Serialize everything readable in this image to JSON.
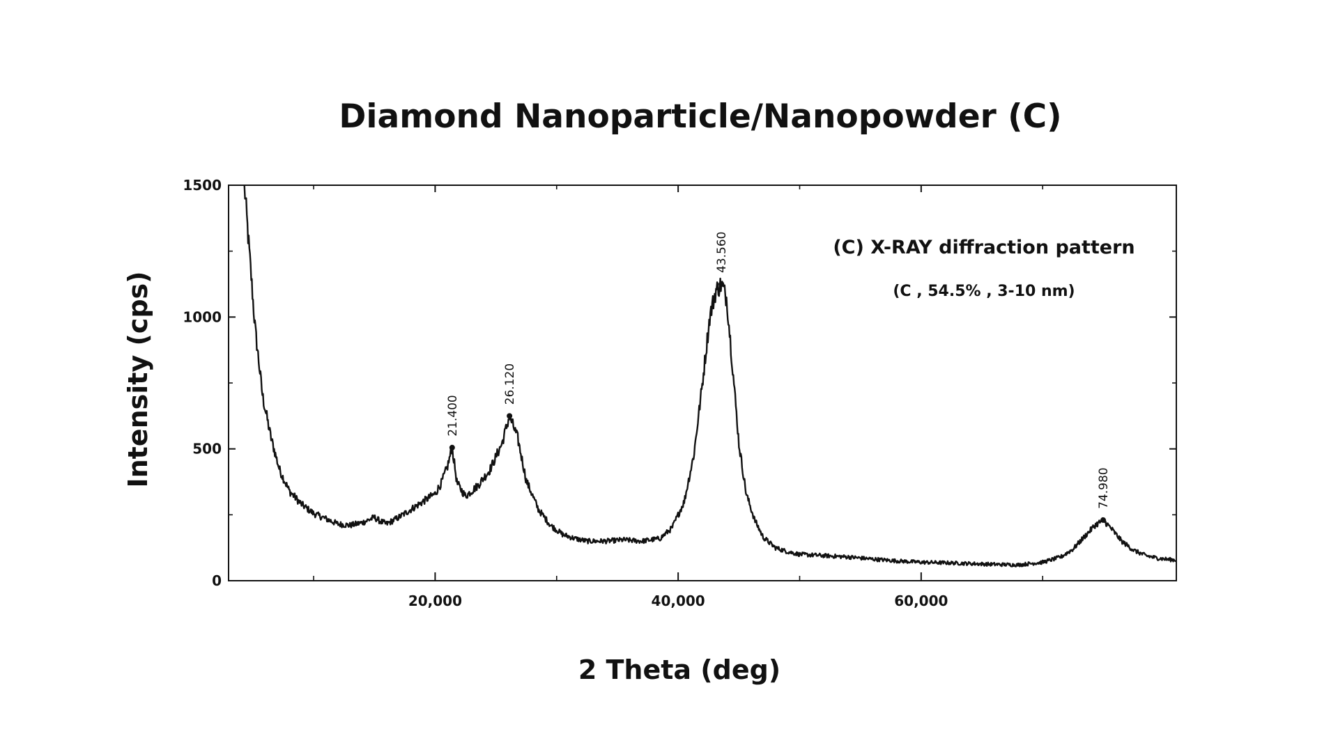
{
  "chart_data": {
    "type": "line",
    "title": "Diamond Nanoparticle/Nanopowder (C)",
    "xlabel": "2 Theta (deg)",
    "ylabel": "Intensity (cps)",
    "xlim": [
      3000,
      81000
    ],
    "ylim": [
      0,
      1500
    ],
    "x_ticks": [
      {
        "value": 20000,
        "label": "20,000"
      },
      {
        "value": 40000,
        "label": "40,000"
      },
      {
        "value": 60000,
        "label": "60,000"
      }
    ],
    "x_minor_ticks": [
      10000,
      30000,
      50000,
      70000
    ],
    "y_ticks": [
      {
        "value": 0,
        "label": "0"
      },
      {
        "value": 500,
        "label": "500"
      },
      {
        "value": 1000,
        "label": "1000"
      },
      {
        "value": 1500,
        "label": "1500"
      }
    ],
    "y_minor_ticks": [
      250,
      750,
      1250
    ],
    "grid": false,
    "line_color": "#111111",
    "annotation": {
      "title": "(C) X-RAY diffraction pattern",
      "subtitle": "(C , 54.5% , 3-10 nm)"
    },
    "peaks": [
      {
        "x": 21400,
        "y": 505,
        "label": "21.400"
      },
      {
        "x": 26120,
        "y": 625,
        "label": "26.120"
      },
      {
        "x": 43560,
        "y": 1125,
        "label": "43.560"
      },
      {
        "x": 74980,
        "y": 230,
        "label": "74.980"
      }
    ],
    "series": [
      {
        "x": [
          4300,
          4700,
          5200,
          5800,
          6500,
          7200,
          8000,
          9000,
          10000,
          11000,
          12000,
          13000,
          14000,
          15000,
          15500,
          16000,
          17000,
          18000,
          19000,
          20000,
          20500,
          21000,
          21400,
          21800,
          22500,
          23500,
          24500,
          25500,
          26120,
          26800,
          27500,
          28500,
          29500,
          30500,
          31500,
          32500,
          34000,
          35500,
          37000,
          38500,
          39500,
          40500,
          41300,
          42000,
          42600,
          43100,
          43560,
          44000,
          44500,
          45000,
          45600,
          46300,
          47000,
          48000,
          49000,
          50000,
          52000,
          54000,
          56000,
          58000,
          60000,
          62000,
          64000,
          66000,
          68000,
          70000,
          71500,
          72500,
          73500,
          74300,
          74980,
          75600,
          76500,
          77500,
          78500,
          79500,
          80500,
          81000
        ],
        "y": [
          1500,
          1250,
          950,
          700,
          540,
          420,
          340,
          290,
          255,
          235,
          215,
          210,
          220,
          240,
          225,
          215,
          240,
          270,
          300,
          330,
          370,
          430,
          505,
          370,
          320,
          360,
          420,
          520,
          625,
          540,
          380,
          270,
          210,
          175,
          160,
          150,
          150,
          155,
          150,
          160,
          200,
          300,
          480,
          750,
          1000,
          1100,
          1125,
          1070,
          800,
          520,
          330,
          230,
          165,
          125,
          110,
          100,
          95,
          90,
          82,
          75,
          70,
          68,
          65,
          62,
          60,
          70,
          90,
          120,
          170,
          210,
          230,
          200,
          150,
          115,
          95,
          85,
          80,
          78
        ]
      }
    ]
  }
}
